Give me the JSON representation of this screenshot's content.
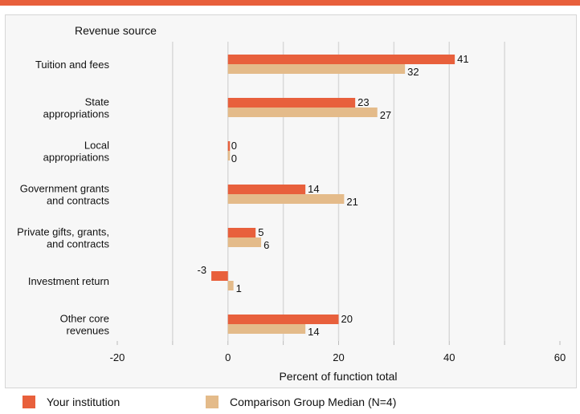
{
  "colors": {
    "accent_bar": "#e8603c",
    "series_1": "#e8603c",
    "series_2": "#e4bb8a",
    "grid": "#d9d9d9"
  },
  "chart_data": {
    "type": "bar",
    "orientation": "horizontal",
    "category_axis_title": "Revenue source",
    "categories": [
      [
        "Tuition and fees"
      ],
      [
        "State",
        "appropriations"
      ],
      [
        "Local",
        "appropriations"
      ],
      [
        "Government grants",
        "and contracts"
      ],
      [
        "Private gifts, grants,",
        "and contracts"
      ],
      [
        "Investment return"
      ],
      [
        "Other core",
        "revenues"
      ]
    ],
    "series": [
      {
        "name": "Your institution",
        "values": [
          41,
          23,
          0,
          14,
          5,
          -3,
          20
        ]
      },
      {
        "name": "Comparison Group Median (N=4)",
        "values": [
          32,
          27,
          0,
          21,
          6,
          1,
          14
        ]
      }
    ],
    "xlabel": "Percent of function total",
    "xlim": [
      -20,
      60
    ],
    "xticks": [
      -20,
      0,
      20,
      40,
      60
    ],
    "grid": true,
    "legend_position": "bottom"
  }
}
